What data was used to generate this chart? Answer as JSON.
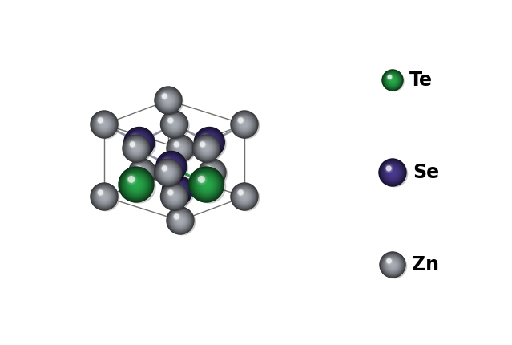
{
  "background_color": "#ffffff",
  "atom_colors": {
    "Te": "#27a84a",
    "Se": "#4a3990",
    "Zn": "#a8adb5"
  },
  "atom_radii": {
    "Te": 22,
    "Se": 19,
    "Zn": 17
  },
  "bond_color_zn_se": "#9090a0",
  "bond_color_te_se": "#30a050",
  "cage_color": "#707070",
  "legend_entries": [
    {
      "label": "Te",
      "color": "#27a84a",
      "r": 13
    },
    {
      "label": "Se",
      "color": "#4a3990",
      "r": 17
    },
    {
      "label": "Zn",
      "color": "#a8adb5",
      "r": 16
    }
  ],
  "figsize": [
    6.39,
    4.3
  ],
  "dpi": 100,
  "view_elev_deg": 20,
  "view_azim_deg": 210
}
